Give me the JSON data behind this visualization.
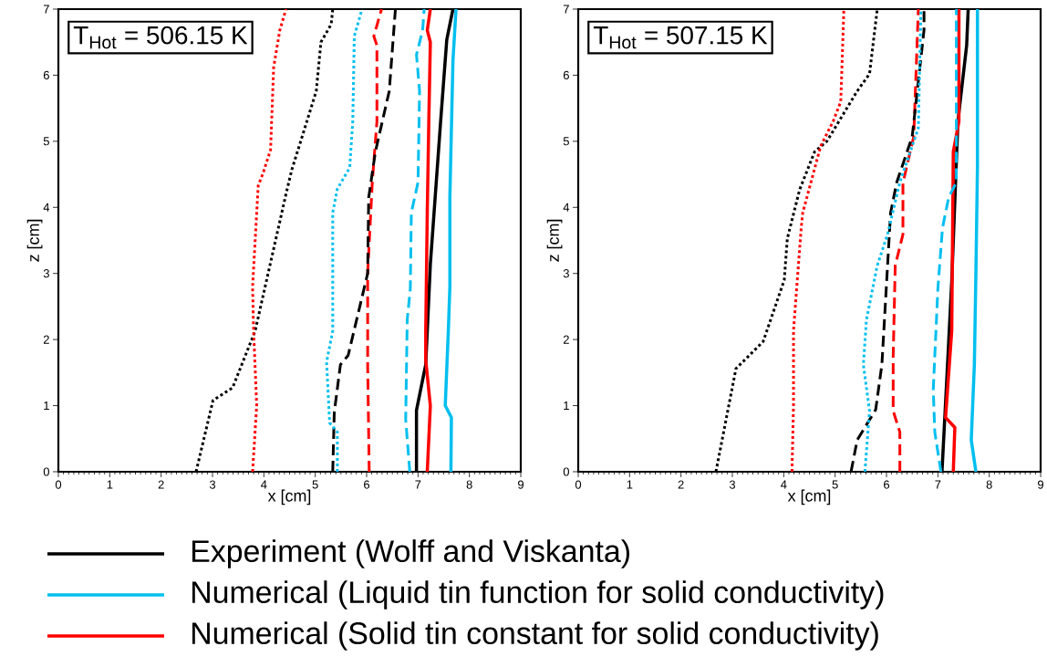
{
  "chart_data": [
    {
      "type": "line",
      "xlabel": "x [cm]",
      "ylabel": "z [cm]",
      "annotations": [
        "T$_{Hot}$ = 506.15 K"
      ],
      "xlim": [
        0,
        9
      ],
      "ylim": [
        0,
        7
      ],
      "xticks": [
        0,
        1,
        2,
        3,
        4,
        5,
        6,
        7,
        8,
        9
      ],
      "yticks": [
        0,
        1,
        2,
        3,
        4,
        5,
        6,
        7
      ],
      "legend": "bottom",
      "series": [
        {
          "name": "Experiment (Wolff and Viskanta)",
          "color": "#000000",
          "line_style": "solid",
          "x": [
            6.97,
            6.97,
            7.15,
            7.24,
            7.44,
            7.56,
            7.68
          ],
          "values": [
            0,
            0.93,
            1.62,
            3.14,
            5.3,
            6.54,
            7
          ]
        },
        {
          "name": "Numerical (Liquid tin function for solid conductivity)",
          "color": "#00bfef",
          "line_style": "solid",
          "x": [
            7.64,
            7.65,
            7.53,
            7.59,
            7.62,
            7.62,
            7.68,
            7.74
          ],
          "values": [
            0,
            0.82,
            1.0,
            2.13,
            2.8,
            4.15,
            6.22,
            7
          ]
        },
        {
          "name": "Numerical (Solid tin constant for solid conductivity)",
          "color": "#ff0000",
          "line_style": "solid",
          "x": [
            7.18,
            7.24,
            7.15,
            7.15,
            7.18,
            7.21,
            7.24,
            7.18,
            7.24
          ],
          "values": [
            0,
            1.0,
            1.69,
            2.13,
            3.92,
            5.3,
            6.5,
            6.68,
            7
          ]
        },
        {
          "color": "#00bfef",
          "line_style": "dashed",
          "x": [
            6.84,
            6.76,
            6.79,
            6.85,
            6.87,
            7.0,
            7.03,
            6.97,
            7.09,
            7.12
          ],
          "values": [
            0,
            0.79,
            2.3,
            2.77,
            3.92,
            4.38,
            5.76,
            6.31,
            6.68,
            7
          ]
        },
        {
          "color": "#ff0000",
          "line_style": "dashed",
          "x": [
            6.05,
            6.02,
            6.02,
            6.11,
            6.2,
            6.2,
            6.14,
            6.29
          ],
          "values": [
            0,
            1.62,
            3.0,
            4.38,
            5.3,
            6.45,
            6.59,
            7
          ]
        },
        {
          "color": "#000000",
          "line_style": "dashed",
          "x": [
            5.34,
            5.37,
            5.49,
            5.64,
            6.02,
            6.04,
            6.17,
            6.44,
            6.56
          ],
          "values": [
            0,
            0.9,
            1.62,
            1.76,
            3.0,
            4.15,
            4.84,
            5.76,
            7
          ]
        },
        {
          "color": "#00bfef",
          "line_style": "dotted",
          "x": [
            5.43,
            5.43,
            5.28,
            5.22,
            5.34,
            5.34,
            5.43,
            5.67,
            5.73,
            5.76,
            5.91
          ],
          "values": [
            0,
            0.6,
            0.74,
            1.66,
            2.13,
            3.92,
            4.28,
            4.6,
            5.3,
            6.59,
            7
          ]
        },
        {
          "color": "#000000",
          "line_style": "dotted",
          "x": [
            2.68,
            3.01,
            3.39,
            3.83,
            4.43,
            4.54,
            5.02,
            5.11,
            5.31,
            5.34
          ],
          "values": [
            0,
            1.08,
            1.27,
            2.13,
            4.2,
            4.56,
            5.76,
            6.5,
            6.77,
            7
          ]
        },
        {
          "color": "#ff0000",
          "line_style": "dotted",
          "x": [
            3.78,
            3.86,
            3.8,
            3.78,
            3.89,
            3.98,
            4.13,
            4.19,
            4.31,
            4.43
          ],
          "values": [
            0,
            1.0,
            2.13,
            2.8,
            4.33,
            4.51,
            4.87,
            6.12,
            6.68,
            7
          ]
        }
      ]
    },
    {
      "type": "line",
      "xlabel": "x [cm]",
      "ylabel": "z [cm]",
      "annotations": [
        "T$_{Hot}$ = 507.15 K"
      ],
      "xlim": [
        0,
        9
      ],
      "ylim": [
        0,
        7
      ],
      "xticks": [
        0,
        1,
        2,
        3,
        4,
        5,
        6,
        7,
        8,
        9
      ],
      "yticks": [
        0,
        1,
        2,
        3,
        4,
        5,
        6,
        7
      ],
      "series": [
        {
          "color": "#000000",
          "line_style": "solid",
          "x": [
            7.08,
            7.18,
            7.27,
            7.39,
            7.56,
            7.59
          ],
          "values": [
            0,
            1.5,
            2.88,
            5.3,
            6.45,
            7
          ]
        },
        {
          "color": "#00bfef",
          "line_style": "solid",
          "x": [
            7.74,
            7.65,
            7.71,
            7.74,
            7.77,
            7.77
          ],
          "values": [
            0,
            0.48,
            1.62,
            3.0,
            4.6,
            7
          ]
        },
        {
          "color": "#ff0000",
          "line_style": "solid",
          "x": [
            7.3,
            7.33,
            7.15,
            7.27,
            7.3,
            7.41,
            7.41
          ],
          "values": [
            0,
            0.67,
            0.82,
            2.13,
            4.84,
            5.3,
            7
          ]
        },
        {
          "color": "#00bfef",
          "line_style": "dashed",
          "x": [
            7.06,
            6.94,
            6.91,
            7.0,
            7.09,
            7.21,
            7.36,
            7.36
          ],
          "values": [
            0,
            0.6,
            1.24,
            2.77,
            3.69,
            4.15,
            4.38,
            7
          ]
        },
        {
          "color": "#ff0000",
          "line_style": "dashed",
          "x": [
            6.26,
            6.26,
            6.13,
            6.13,
            6.17,
            6.32,
            6.32,
            6.53,
            6.62
          ],
          "values": [
            0,
            0.6,
            0.92,
            1.74,
            3.12,
            3.59,
            4.37,
            5.07,
            7
          ]
        },
        {
          "color": "#000000",
          "line_style": "dashed",
          "x": [
            5.31,
            5.43,
            5.79,
            5.91,
            6.08,
            6.2,
            6.5,
            6.73,
            6.73
          ],
          "values": [
            0,
            0.48,
            0.94,
            1.62,
            3.92,
            4.38,
            5.07,
            6.68,
            7
          ]
        },
        {
          "color": "#00bfef",
          "line_style": "dotted",
          "x": [
            5.58,
            5.67,
            5.55,
            5.61,
            5.82,
            6.02,
            6.26,
            6.62,
            6.67
          ],
          "values": [
            0,
            0.92,
            1.62,
            2.3,
            3.12,
            3.59,
            4.38,
            5.2,
            7
          ]
        },
        {
          "color": "#000000",
          "line_style": "dotted",
          "x": [
            2.68,
            3.07,
            3.6,
            4.01,
            4.07,
            4.31,
            4.6,
            4.84,
            5.43,
            5.67,
            5.82
          ],
          "values": [
            0,
            1.56,
            1.97,
            2.9,
            3.53,
            4.27,
            4.84,
            5.0,
            5.76,
            6.02,
            7
          ]
        },
        {
          "color": "#ff0000",
          "line_style": "dotted",
          "x": [
            4.16,
            4.19,
            4.19,
            4.34,
            4.37,
            4.72,
            4.96,
            5.11,
            5.17
          ],
          "values": [
            0,
            1.0,
            2.13,
            3.69,
            3.92,
            4.93,
            5.3,
            5.6,
            7
          ]
        }
      ]
    }
  ]
}
